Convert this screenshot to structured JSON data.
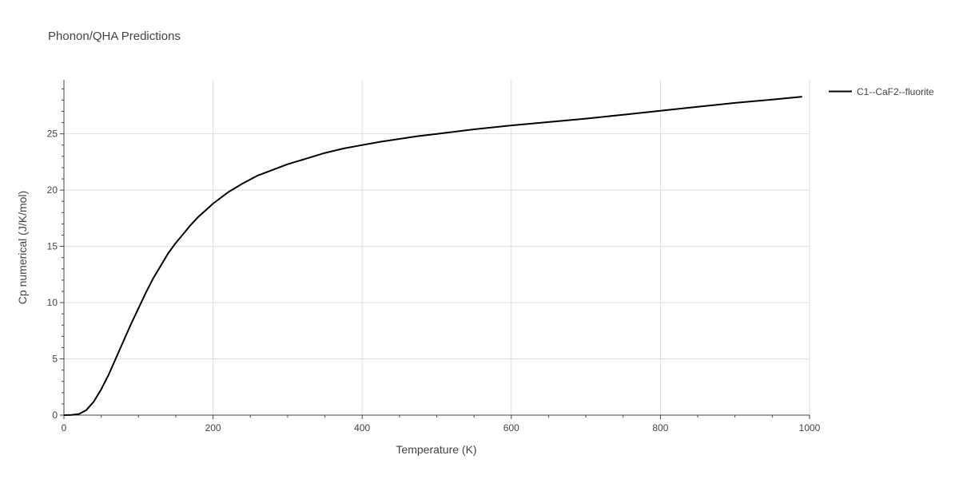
{
  "chart_data": {
    "type": "line",
    "title": "Phonon/QHA Predictions",
    "xlabel": "Temperature (K)",
    "ylabel": "Cp numerical (J/K/mol)",
    "xlim": [
      0,
      1000
    ],
    "ylim": [
      0,
      29.8
    ],
    "xticks": [
      0,
      200,
      400,
      600,
      800,
      1000
    ],
    "yticks": [
      0,
      5,
      10,
      15,
      20,
      25
    ],
    "grid": true,
    "legend_position": "top-right",
    "line_color": "#000000",
    "series": [
      {
        "name": "C1--CaF2--fluorite",
        "x": [
          0,
          10,
          20,
          30,
          40,
          50,
          60,
          70,
          80,
          90,
          100,
          110,
          120,
          130,
          140,
          150,
          160,
          170,
          180,
          190,
          200,
          220,
          240,
          260,
          280,
          300,
          325,
          350,
          375,
          400,
          425,
          450,
          475,
          500,
          550,
          600,
          650,
          700,
          750,
          800,
          850,
          900,
          950,
          990
        ],
        "y": [
          0,
          0.02,
          0.1,
          0.45,
          1.2,
          2.3,
          3.6,
          5.1,
          6.6,
          8.1,
          9.5,
          10.9,
          12.2,
          13.3,
          14.4,
          15.3,
          16.1,
          16.9,
          17.6,
          18.2,
          18.8,
          19.8,
          20.6,
          21.3,
          21.8,
          22.3,
          22.8,
          23.3,
          23.7,
          24.0,
          24.3,
          24.55,
          24.8,
          25.0,
          25.4,
          25.75,
          26.05,
          26.35,
          26.7,
          27.05,
          27.4,
          27.75,
          28.05,
          28.3
        ]
      }
    ]
  }
}
